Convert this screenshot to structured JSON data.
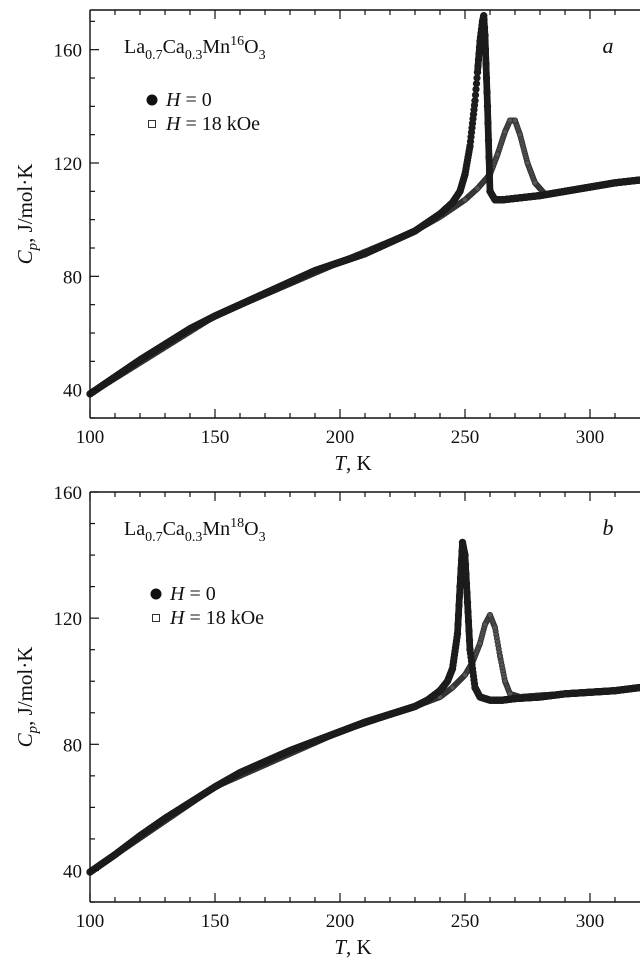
{
  "chart_data": [
    {
      "type": "scatter",
      "panel": "a",
      "title_parts": [
        "La",
        "0.7",
        "Ca",
        "0.3",
        "Mn",
        "16",
        "O",
        "3"
      ],
      "xlabel_sym": "T",
      "xlabel_unit": ", K",
      "ylabel_sym": "C",
      "ylabel_sub": "p",
      "ylabel_unit": ", J/mol·K",
      "xlim": [
        100,
        320
      ],
      "ylim": [
        30,
        174
      ],
      "xticks": [
        100,
        150,
        200,
        250,
        300
      ],
      "yticks": [
        40,
        80,
        120,
        160
      ],
      "legend": {
        "s1": {
          "sym": "H",
          "text": " = 0"
        },
        "s2": {
          "sym": "H",
          "text": " = 18 kOe"
        }
      },
      "series": [
        {
          "name": "H = 0",
          "x": [
            100,
            110,
            120,
            130,
            140,
            150,
            160,
            170,
            180,
            190,
            200,
            210,
            220,
            230,
            240,
            245,
            248,
            250,
            252,
            254,
            255,
            256,
            257,
            257.5,
            258,
            259,
            260,
            262,
            265,
            270,
            280,
            290,
            300,
            310,
            320
          ],
          "y": [
            38.5,
            44.5,
            50.5,
            56,
            61.5,
            66,
            70,
            74,
            78,
            82,
            85,
            88,
            92,
            96,
            102,
            106,
            110,
            116,
            126,
            142,
            152,
            163,
            170,
            172,
            165,
            140,
            110,
            107,
            107,
            107.5,
            108.5,
            110,
            111.5,
            113,
            114
          ]
        },
        {
          "name": "H = 18 kOe",
          "x": [
            100,
            150,
            200,
            230,
            240,
            250,
            255,
            260,
            263,
            266,
            268,
            270,
            272,
            275,
            278,
            282,
            290,
            300,
            310,
            320
          ],
          "y": [
            38.5,
            66,
            85,
            96,
            101,
            107,
            111,
            116,
            123,
            131,
            135,
            135,
            130,
            120,
            113,
            109,
            110,
            111.5,
            113,
            114
          ]
        }
      ]
    },
    {
      "type": "scatter",
      "panel": "b",
      "title_parts": [
        "La",
        "0.7",
        "Ca",
        "0.3",
        "Mn",
        "18",
        "O",
        "3"
      ],
      "xlabel_sym": "T",
      "xlabel_unit": ", K",
      "ylabel_sym": "C",
      "ylabel_sub": "p",
      "ylabel_unit": ", J/mol·K",
      "xlim": [
        100,
        320
      ],
      "ylim": [
        30,
        160
      ],
      "xticks": [
        100,
        150,
        200,
        250,
        300
      ],
      "yticks": [
        40,
        80,
        120,
        160
      ],
      "legend": {
        "s1": {
          "sym": "H",
          "text": " = 0"
        },
        "s2": {
          "sym": "H",
          "text": " = 18 kOe"
        }
      },
      "series": [
        {
          "name": "H = 0",
          "x": [
            100,
            110,
            120,
            130,
            140,
            150,
            160,
            170,
            180,
            190,
            200,
            210,
            220,
            230,
            235,
            240,
            243,
            245,
            247,
            248,
            249,
            250,
            251,
            252,
            254,
            256,
            260,
            265,
            270,
            280,
            290,
            300,
            310,
            320
          ],
          "y": [
            39.5,
            45,
            51,
            56.5,
            61.5,
            66.5,
            71,
            74.5,
            78,
            81,
            84,
            87,
            89.5,
            92,
            94,
            97,
            100,
            104,
            115,
            130,
            144,
            140,
            125,
            110,
            98,
            95,
            94,
            94,
            94.5,
            95,
            96,
            96.5,
            97,
            98
          ]
        },
        {
          "name": "H = 18 kOe",
          "x": [
            100,
            150,
            200,
            230,
            240,
            245,
            250,
            253,
            256,
            258,
            260,
            262,
            264,
            266,
            268,
            272,
            280,
            290,
            300,
            310,
            320
          ],
          "y": [
            39.5,
            66.5,
            84,
            92,
            95,
            98,
            102,
            106,
            112,
            118,
            121,
            117,
            108,
            100,
            96,
            95,
            95.5,
            96,
            96.5,
            97,
            98
          ]
        }
      ]
    }
  ]
}
